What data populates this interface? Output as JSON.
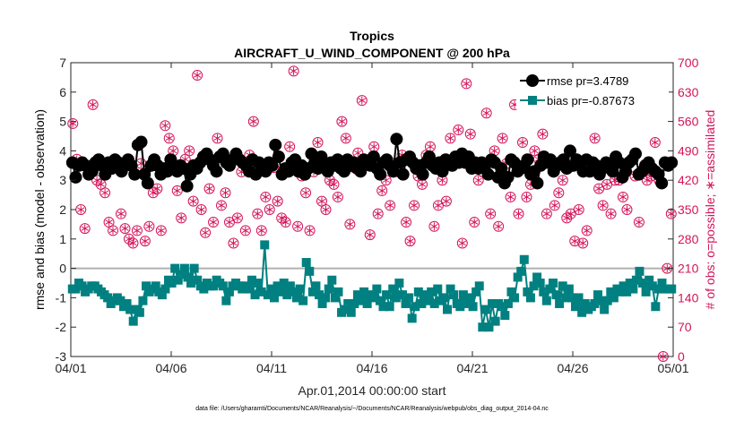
{
  "chart_data": {
    "type": "line",
    "title": "Tropics",
    "subtitle": "AIRCRAFT_U_WIND_COMPONENT @ 200 hPa",
    "xlabel": "Apr.01,2014 00:00:00 start",
    "ylabel_left": "rmse and bias (model - observation)",
    "ylabel_right": "# of obs: o=possible; ∗=assimilated",
    "ylim_left": [
      -3,
      7
    ],
    "ylim_right": [
      0,
      700
    ],
    "xlim": [
      0,
      30
    ],
    "left_ticks": [
      "-3",
      "-2",
      "-1",
      "0",
      "1",
      "2",
      "3",
      "4",
      "5",
      "6",
      "7"
    ],
    "right_ticks": [
      "0",
      "70",
      "140",
      "210",
      "280",
      "350",
      "420",
      "490",
      "560",
      "630",
      "700"
    ],
    "x_tick_labels": [
      "04/01",
      "04/06",
      "04/11",
      "04/16",
      "04/21",
      "04/26",
      "05/01"
    ],
    "x_tick_positions": [
      0,
      5,
      10,
      15,
      20,
      25,
      30
    ],
    "zero_line": 0,
    "colors": {
      "rmse": "#000000",
      "bias": "#008080",
      "obs": "#d4145a",
      "zero": "#b0b0b0"
    },
    "legend": {
      "placement": "top-right",
      "rmse_label": "rmse pr=3.4789",
      "bias_label": "bias pr=-0.87673"
    },
    "footnote": "data file: /Users/gharamti/Documents/NCAR/Reanalysis/~/Documents/NCAR/Reanalysis/webpub/obs_diag_output_2014-04.nc",
    "series": [
      {
        "name": "rmse",
        "values": [
          3.6,
          3.1,
          3.5,
          3.6,
          3.5,
          3.2,
          3.3,
          3.6,
          3.7,
          3.5,
          3.2,
          3.6,
          3.4,
          3.7,
          3.6,
          3.3,
          3.5,
          3.7,
          3.5,
          3.2,
          4.2,
          4.3,
          3.2,
          2.9,
          3.5,
          3.7,
          3.5,
          3.2,
          3.4,
          3.3,
          3.7,
          3.5,
          3.3,
          3.5,
          3.4,
          2.8,
          3.2,
          3.5,
          3.4,
          3.6,
          3.8,
          3.9,
          3.7,
          3.5,
          3.3,
          3.8,
          3.9,
          3.6,
          3.5,
          3.7,
          3.9,
          3.7,
          3.6,
          3.5,
          3.3,
          3.7,
          3.2,
          3.6,
          3.4,
          3.3,
          3.6,
          3.5,
          4.2,
          3.8,
          3.2,
          3.4,
          3.3,
          3.6,
          3.7,
          3.3,
          3.5,
          3.2,
          3.4,
          3.9,
          3.6,
          3.4,
          3.8,
          3.5,
          3.3,
          3.6,
          3.5,
          3.7,
          3.4,
          3.3,
          3.7,
          3.5,
          3.6,
          3.4,
          3.3,
          3.7,
          3.6,
          3.5,
          3.8,
          3.4,
          3.2,
          3.6,
          3.7,
          3.5,
          3.3,
          4.4,
          3.6,
          3.2,
          3.7,
          3.8,
          3.6,
          3.4,
          3.5,
          3.2,
          3.6,
          3.8,
          3.5,
          3.4,
          3.6,
          3.3,
          3.7,
          3.6,
          3.5,
          3.8,
          3.6,
          3.9,
          3.6,
          3.8,
          3.4,
          3.6,
          3.4,
          3.6,
          3.5,
          3.2,
          3.7,
          3.6,
          3.1,
          3.4,
          2.9,
          3.1,
          3.7,
          3.6,
          3.3,
          3.4,
          3.5,
          3.7,
          3.2,
          3.3,
          2.9,
          3.5,
          3.8,
          3.6,
          3.7,
          3.3,
          3.5,
          3.6,
          3.7,
          3.4,
          4.0,
          3.5,
          3.7,
          3.6,
          3.3,
          3.7,
          3.3,
          3.6,
          3.5,
          3.2,
          3.4,
          3.6,
          3.5,
          3.3,
          3.8,
          3.6,
          3.1,
          3.3,
          3.6,
          3.7,
          3.9,
          3.2,
          3.3,
          3.5,
          3.6,
          3.4,
          3.3,
          3.2,
          2.9,
          3.6,
          3.5,
          3.6
        ]
      },
      {
        "name": "bias",
        "values": [
          -0.7,
          -0.7,
          -0.5,
          -0.6,
          -0.8,
          -0.7,
          -0.6,
          -0.6,
          -0.7,
          -0.8,
          -0.9,
          -1.0,
          -1.2,
          -1.1,
          -1.0,
          -1.1,
          -1.3,
          -1.2,
          -1.4,
          -1.8,
          -1.4,
          -1.5,
          -1.1,
          -0.6,
          -0.8,
          -0.7,
          -0.6,
          -0.8,
          -0.9,
          -0.7,
          -0.4,
          -0.5,
          0.0,
          -0.4,
          -0.2,
          0.0,
          -0.3,
          -0.5,
          0.0,
          -0.4,
          -0.6,
          -0.7,
          -0.5,
          -0.6,
          -0.6,
          -0.4,
          -0.5,
          -0.6,
          -1.1,
          -0.8,
          -0.6,
          -0.5,
          -0.6,
          -0.7,
          -0.6,
          -0.7,
          -0.4,
          -0.9,
          -0.5,
          -0.8,
          0.8,
          -0.9,
          -0.7,
          -1.0,
          -0.6,
          -0.8,
          -0.5,
          -0.9,
          -0.6,
          -0.8,
          -1.0,
          -0.7,
          -1.1,
          0.2,
          -0.1,
          -0.8,
          -0.6,
          -0.9,
          -1.2,
          -1.0,
          -0.7,
          -0.4,
          -1.0,
          -0.8,
          -1.5,
          -1.4,
          -1.2,
          -1.5,
          -1.2,
          -0.9,
          -1.1,
          -0.8,
          -1.2,
          -0.9,
          -1.0,
          -0.7,
          -1.1,
          -1.3,
          -0.9,
          -1.3,
          -0.7,
          -1.0,
          -0.5,
          -0.9,
          -1.2,
          -1.0,
          -1.7,
          -1.3,
          -0.8,
          -1.2,
          -0.9,
          -1.1,
          -0.8,
          -1.2,
          -0.7,
          -1.1,
          -1.0,
          -1.4,
          -0.7,
          -0.9,
          -1.2,
          -1.3,
          -0.9,
          -1.2,
          -1.0,
          -1.3,
          -0.8,
          -0.6,
          -2.0,
          -1.4,
          -2.0,
          -1.2,
          -1.8,
          -1.2,
          -1.3,
          -1.6,
          -1.2,
          -0.8,
          -1.0,
          -0.3,
          -0.1,
          0.3,
          -0.8,
          -1.0,
          -0.6,
          -0.3,
          -0.5,
          -0.8,
          -1.1,
          -0.7,
          -0.5,
          -0.9,
          -1.2,
          -0.6,
          -1.0,
          -0.7,
          -1.0,
          -1.3,
          -1.0,
          -1.5,
          -1.2,
          -1.4,
          -1.3,
          -1.2,
          -0.9,
          -1.1,
          -1.4,
          -1.1,
          -0.8,
          -1.0,
          -0.7,
          -0.8,
          -0.6,
          -0.8,
          -0.5,
          -0.7,
          -0.4,
          -0.1,
          -0.5,
          -0.8,
          -0.4,
          -0.6,
          -1.3,
          -0.7,
          -0.5,
          -0.7,
          -0.7,
          -0.7
        ]
      },
      {
        "name": "obs_possible",
        "values": [
          555,
          470,
          350,
          305,
          440,
          600,
          420,
          410,
          390,
          320,
          300,
          455,
          340,
          305,
          280,
          270,
          300,
          460,
          275,
          310,
          390,
          400,
          300,
          550,
          520,
          490,
          395,
          330,
          470,
          490,
          370,
          670,
          350,
          295,
          400,
          320,
          520,
          360,
          390,
          320,
          270,
          330,
          440,
          300,
          480,
          560,
          340,
          300,
          380,
          350,
          450,
          370,
          330,
          320,
          500,
          680,
          310,
          430,
          390,
          300,
          440,
          510,
          370,
          350,
          420,
          410,
          380,
          560,
          520,
          315,
          450,
          485,
          610,
          460,
          290,
          500,
          340,
          395,
          420,
          360,
          460,
          440,
          480,
          320,
          275,
          360,
          430,
          410,
          480,
          500,
          310,
          360,
          420,
          370,
          520,
          460,
          540,
          270,
          650,
          530,
          320,
          420,
          440,
          580,
          340,
          490,
          310,
          520,
          460,
          380,
          600,
          340,
          510,
          380,
          410,
          490,
          470,
          530,
          340,
          460,
          360,
          390,
          420,
          330,
          340,
          275,
          350,
          270,
          300,
          440,
          520,
          400,
          360,
          410,
          340,
          420,
          420,
          380,
          350,
          670,
          430,
          320,
          440,
          420,
          430,
          510,
          420,
          0,
          210,
          340
        ]
      },
      {
        "name": "obs_assimilated",
        "values": [
          555,
          470,
          350,
          305,
          440,
          600,
          420,
          410,
          390,
          320,
          300,
          455,
          340,
          305,
          280,
          270,
          300,
          460,
          275,
          310,
          390,
          400,
          300,
          550,
          520,
          490,
          395,
          330,
          470,
          490,
          370,
          670,
          350,
          295,
          400,
          320,
          520,
          360,
          390,
          320,
          270,
          330,
          440,
          300,
          480,
          560,
          340,
          300,
          380,
          350,
          450,
          370,
          330,
          320,
          500,
          680,
          310,
          430,
          390,
          300,
          440,
          510,
          370,
          350,
          420,
          410,
          380,
          560,
          520,
          315,
          450,
          485,
          610,
          460,
          290,
          500,
          340,
          395,
          420,
          360,
          460,
          440,
          480,
          320,
          275,
          360,
          430,
          410,
          480,
          500,
          310,
          360,
          420,
          370,
          520,
          460,
          540,
          270,
          650,
          530,
          320,
          420,
          440,
          580,
          340,
          490,
          310,
          520,
          460,
          380,
          600,
          340,
          510,
          380,
          410,
          490,
          470,
          530,
          340,
          460,
          360,
          390,
          420,
          330,
          340,
          275,
          350,
          270,
          300,
          440,
          520,
          400,
          360,
          410,
          340,
          420,
          420,
          380,
          350,
          670,
          430,
          320,
          440,
          420,
          430,
          510,
          420,
          0,
          210,
          340
        ]
      }
    ]
  }
}
